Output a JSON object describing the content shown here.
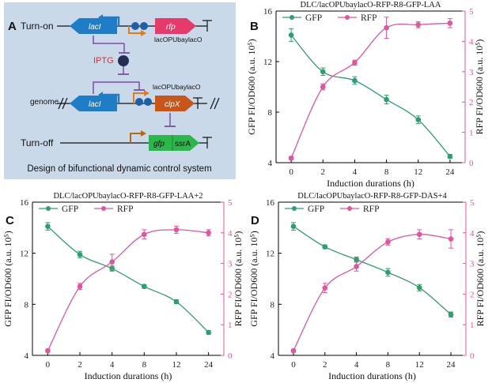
{
  "panel_a": {
    "letter": "A",
    "turn_on": "Turn-on",
    "turn_off": "Turn-off",
    "genome": "genome",
    "iptg": "IPTG",
    "lacI": "lacI",
    "rfp": "rfp",
    "clpX": "clpX",
    "gfp": "gfp",
    "ssrA": "ssrA",
    "promoter_1": "lacOPUbaylacO",
    "promoter_2": "lacOPUbaylacO",
    "caption": "Design of bifunctional dynamic control system",
    "colors": {
      "background": "#c9d9ea",
      "lacI": "#1f7cc6",
      "rfp": "#e53a6a",
      "clpX": "#c8551a",
      "gfp": "#2bb74a",
      "iptg": "#222f55",
      "inhibit": "#7a4fa0",
      "promoter": "#e07a22"
    }
  },
  "legend": {
    "gfp": "GFP",
    "rfp": "RFP"
  },
  "labels": {
    "x": "Induction durations (h)",
    "y_left": "GFP FI/OD600 (a.u. 10⁵)",
    "y_right": "RFP FI/OD600 (a.u. 10⁵)"
  },
  "colors": {
    "gfp": "#2e9e6e",
    "rfp": "#e0569e"
  },
  "chart_data": [
    {
      "letter": "B",
      "type": "line",
      "title": "DLC/lacOPUbaylacO-RFP-R8-GFP-LAA",
      "categories": [
        "0",
        "2",
        "4",
        "8",
        "12",
        "24"
      ],
      "ylim_left": [
        4,
        16
      ],
      "yticks_left": [
        4,
        8,
        12,
        16
      ],
      "ylim_right": [
        0,
        5
      ],
      "yticks_right": [
        0,
        1,
        2,
        3,
        4,
        5
      ],
      "series": [
        {
          "name": "GFP",
          "axis": "left",
          "values": [
            14.1,
            11.2,
            10.5,
            9.0,
            7.4,
            4.5
          ],
          "errors": [
            0.5,
            0.3,
            0.3,
            0.35,
            0.3,
            0.15
          ]
        },
        {
          "name": "RFP",
          "axis": "right",
          "values": [
            0.15,
            2.5,
            3.3,
            4.45,
            4.55,
            4.6
          ],
          "errors": [
            0.05,
            0.1,
            0.08,
            0.35,
            0.1,
            0.15
          ]
        }
      ]
    },
    {
      "letter": "C",
      "type": "line",
      "title": "DLC/lacOPUbaylacO-RFP-R8-GFP-LAA+2",
      "categories": [
        "0",
        "2",
        "4",
        "8",
        "12",
        "24"
      ],
      "ylim_left": [
        4,
        16
      ],
      "yticks_left": [
        4,
        8,
        12,
        16
      ],
      "ylim_right": [
        0,
        5
      ],
      "yticks_right": [
        0,
        1,
        2,
        3,
        4,
        5
      ],
      "series": [
        {
          "name": "GFP",
          "axis": "left",
          "values": [
            14.1,
            11.9,
            10.8,
            9.4,
            8.2,
            5.8
          ],
          "errors": [
            0.3,
            0.25,
            0.2,
            0.15,
            0.15,
            0.15
          ]
        },
        {
          "name": "RFP",
          "axis": "right",
          "values": [
            0.15,
            2.25,
            3.05,
            3.95,
            4.1,
            4.0
          ],
          "errors": [
            0.05,
            0.1,
            0.25,
            0.15,
            0.12,
            0.1
          ]
        }
      ]
    },
    {
      "letter": "D",
      "type": "line",
      "title": "DLC/lacOPUbaylacO-RFP-R8-GFP-DAS+4",
      "categories": [
        "0",
        "2",
        "4",
        "8",
        "12",
        "24"
      ],
      "ylim_left": [
        4,
        16
      ],
      "yticks_left": [
        4,
        8,
        12,
        16
      ],
      "ylim_right": [
        0,
        5
      ],
      "yticks_right": [
        0,
        1,
        2,
        3,
        4,
        5
      ],
      "series": [
        {
          "name": "GFP",
          "axis": "left",
          "values": [
            14.1,
            12.5,
            11.5,
            10.5,
            9.3,
            7.2
          ],
          "errors": [
            0.3,
            0.15,
            0.2,
            0.3,
            0.25,
            0.2
          ]
        },
        {
          "name": "RFP",
          "axis": "right",
          "values": [
            0.15,
            2.2,
            2.9,
            3.7,
            3.95,
            3.8
          ],
          "errors": [
            0.05,
            0.15,
            0.15,
            0.1,
            0.15,
            0.3
          ]
        }
      ]
    }
  ]
}
